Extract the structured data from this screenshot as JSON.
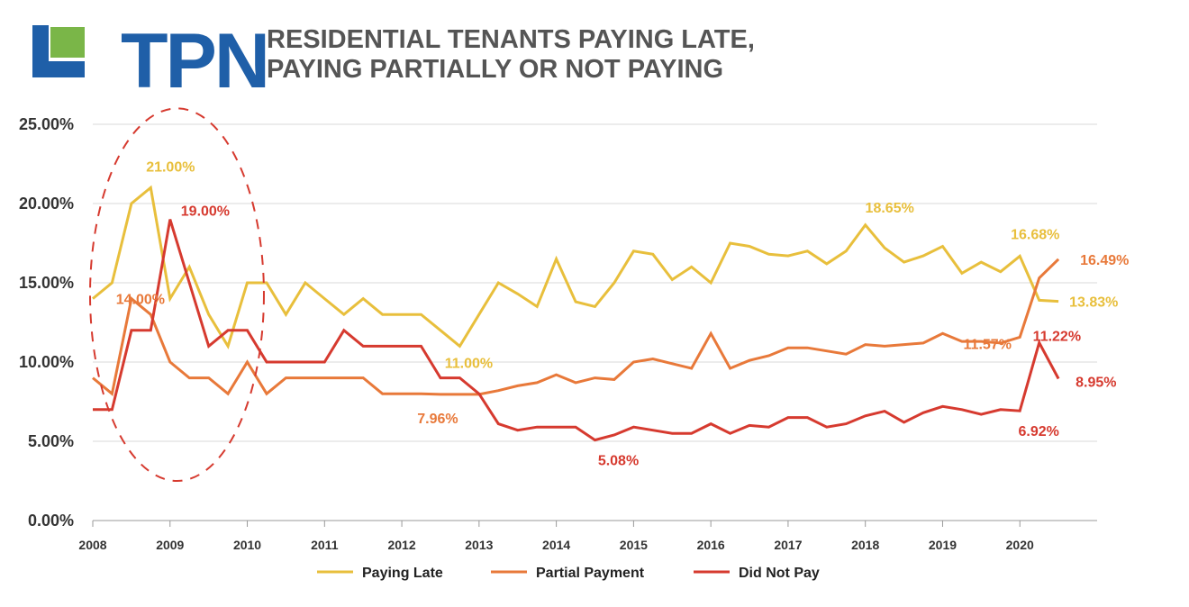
{
  "logo": {
    "text": "TPN",
    "brand_color": "#1f5fa8",
    "accent_color": "#7ab648"
  },
  "title": {
    "line1": "RESIDENTIAL TENANTS PAYING LATE,",
    "line2": "PAYING PARTIALLY OR NOT PAYING"
  },
  "chart_data": {
    "type": "line",
    "xlabel": "",
    "ylabel": "",
    "xlim": [
      2008,
      2021
    ],
    "ylim": [
      0,
      25
    ],
    "y_ticks": [
      "0.00%",
      "5.00%",
      "10.00%",
      "15.00%",
      "20.00%",
      "25.00%"
    ],
    "x_ticks": [
      "2008",
      "2009",
      "2010",
      "2011",
      "2012",
      "2013",
      "2014",
      "2015",
      "2016",
      "2017",
      "2018",
      "2019",
      "2020"
    ],
    "grid": "horizontal",
    "legend_position": "bottom-center",
    "series": [
      {
        "name": "Paying Late",
        "color": "#e8bf3c",
        "x": [
          2008.0,
          2008.25,
          2008.5,
          2008.75,
          2009.0,
          2009.25,
          2009.5,
          2009.75,
          2010.0,
          2010.25,
          2010.5,
          2010.75,
          2011.0,
          2011.25,
          2011.5,
          2011.75,
          2012.0,
          2012.25,
          2012.5,
          2012.75,
          2013.0,
          2013.25,
          2013.5,
          2013.75,
          2014.0,
          2014.25,
          2014.5,
          2014.75,
          2015.0,
          2015.25,
          2015.5,
          2015.75,
          2016.0,
          2016.25,
          2016.5,
          2016.75,
          2017.0,
          2017.25,
          2017.5,
          2017.75,
          2018.0,
          2018.25,
          2018.5,
          2018.75,
          2019.0,
          2019.25,
          2019.5,
          2019.75,
          2020.0,
          2020.25,
          2020.5
        ],
        "y": [
          14.0,
          15.0,
          20.0,
          21.0,
          14.0,
          16.0,
          13.0,
          11.0,
          15.0,
          15.0,
          13.0,
          15.0,
          14.0,
          13.0,
          14.0,
          13.0,
          13.0,
          13.0,
          12.0,
          11.0,
          13.0,
          15.0,
          14.3,
          13.5,
          16.5,
          13.8,
          13.5,
          15.0,
          17.0,
          16.8,
          15.2,
          16.0,
          15.0,
          17.5,
          17.3,
          16.8,
          16.7,
          17.0,
          16.2,
          17.0,
          18.65,
          17.2,
          16.3,
          16.7,
          17.3,
          15.6,
          16.3,
          15.7,
          16.68,
          13.9,
          13.83
        ]
      },
      {
        "name": "Partial Payment",
        "color": "#e8793a",
        "x": [
          2008.0,
          2008.25,
          2008.5,
          2008.75,
          2009.0,
          2009.25,
          2009.5,
          2009.75,
          2010.0,
          2010.25,
          2010.5,
          2010.75,
          2011.0,
          2011.25,
          2011.5,
          2011.75,
          2012.0,
          2012.25,
          2012.5,
          2012.75,
          2013.0,
          2013.25,
          2013.5,
          2013.75,
          2014.0,
          2014.25,
          2014.5,
          2014.75,
          2015.0,
          2015.25,
          2015.5,
          2015.75,
          2016.0,
          2016.25,
          2016.5,
          2016.75,
          2017.0,
          2017.25,
          2017.5,
          2017.75,
          2018.0,
          2018.25,
          2018.5,
          2018.75,
          2019.0,
          2019.25,
          2019.5,
          2019.75,
          2020.0,
          2020.25,
          2020.5
        ],
        "y": [
          9.0,
          8.0,
          14.0,
          13.0,
          10.0,
          9.0,
          9.0,
          8.0,
          10.0,
          8.0,
          9.0,
          9.0,
          9.0,
          9.0,
          9.0,
          8.0,
          8.0,
          8.0,
          7.96,
          7.96,
          7.96,
          8.2,
          8.5,
          8.7,
          9.2,
          8.7,
          9.0,
          8.9,
          10.0,
          10.2,
          9.9,
          9.6,
          11.8,
          9.6,
          10.1,
          10.4,
          10.9,
          10.9,
          10.7,
          10.5,
          11.1,
          11.0,
          11.1,
          11.2,
          11.8,
          11.3,
          11.3,
          11.2,
          11.57,
          15.3,
          16.49
        ]
      },
      {
        "name": "Did Not Pay",
        "color": "#d63a2f",
        "x": [
          2008.0,
          2008.25,
          2008.5,
          2008.75,
          2009.0,
          2009.25,
          2009.5,
          2009.75,
          2010.0,
          2010.25,
          2010.5,
          2010.75,
          2011.0,
          2011.25,
          2011.5,
          2011.75,
          2012.0,
          2012.25,
          2012.5,
          2012.75,
          2013.0,
          2013.25,
          2013.5,
          2013.75,
          2014.0,
          2014.25,
          2014.5,
          2014.75,
          2015.0,
          2015.25,
          2015.5,
          2015.75,
          2016.0,
          2016.25,
          2016.5,
          2016.75,
          2017.0,
          2017.25,
          2017.5,
          2017.75,
          2018.0,
          2018.25,
          2018.5,
          2018.75,
          2019.0,
          2019.25,
          2019.5,
          2019.75,
          2020.0,
          2020.25,
          2020.5
        ],
        "y": [
          7.0,
          7.0,
          12.0,
          12.0,
          19.0,
          15.0,
          11.0,
          12.0,
          12.0,
          10.0,
          10.0,
          10.0,
          10.0,
          12.0,
          11.0,
          11.0,
          11.0,
          11.0,
          9.0,
          9.0,
          8.0,
          6.1,
          5.7,
          5.9,
          5.9,
          5.9,
          5.08,
          5.4,
          5.9,
          5.7,
          5.5,
          5.5,
          6.1,
          5.5,
          6.0,
          5.9,
          6.5,
          6.5,
          5.9,
          6.1,
          6.6,
          6.9,
          6.2,
          6.8,
          7.2,
          7.0,
          6.7,
          7.0,
          6.92,
          11.22,
          8.95
        ]
      }
    ],
    "annotations": [
      {
        "text": "21.00%",
        "series": "Paying Late",
        "x": 2008.75,
        "y": 21.0,
        "color": "#e8bf3c"
      },
      {
        "text": "19.00%",
        "series": "Did Not Pay",
        "x": 2009.0,
        "y": 19.0,
        "color": "#d63a2f"
      },
      {
        "text": "14.00%",
        "series": "Partial Payment",
        "x": 2008.5,
        "y": 14.0,
        "color": "#e8793a"
      },
      {
        "text": "11.00%",
        "series": "Paying Late",
        "x": 2012.75,
        "y": 11.0,
        "color": "#e8bf3c"
      },
      {
        "text": "7.96%",
        "series": "Partial Payment",
        "x": 2012.5,
        "y": 7.96,
        "color": "#e8793a"
      },
      {
        "text": "5.08%",
        "series": "Did Not Pay",
        "x": 2014.5,
        "y": 5.08,
        "color": "#d63a2f"
      },
      {
        "text": "18.65%",
        "series": "Paying Late",
        "x": 2018.0,
        "y": 18.65,
        "color": "#e8bf3c"
      },
      {
        "text": "16.68%",
        "series": "Paying Late",
        "x": 2020.0,
        "y": 16.68,
        "color": "#e8bf3c"
      },
      {
        "text": "16.49%",
        "series": "Partial Payment",
        "x": 2020.5,
        "y": 16.49,
        "color": "#e8793a"
      },
      {
        "text": "13.83%",
        "series": "Paying Late",
        "x": 2020.5,
        "y": 13.83,
        "color": "#e8bf3c"
      },
      {
        "text": "11.22%",
        "series": "Did Not Pay",
        "x": 2020.25,
        "y": 11.22,
        "color": "#d63a2f"
      },
      {
        "text": "11.57%",
        "series": "Partial Payment",
        "x": 2020.0,
        "y": 11.57,
        "color": "#e8793a"
      },
      {
        "text": "8.95%",
        "series": "Did Not Pay",
        "x": 2020.5,
        "y": 8.95,
        "color": "#d63a2f"
      },
      {
        "text": "6.92%",
        "series": "Did Not Pay",
        "x": 2020.0,
        "y": 6.92,
        "color": "#d63a2f"
      }
    ],
    "highlight": {
      "shape": "dashed-ellipse",
      "color": "#d63a2f",
      "x_range": [
        2008.0,
        2010.25
      ],
      "y_range": [
        2.5,
        26.0
      ]
    }
  }
}
